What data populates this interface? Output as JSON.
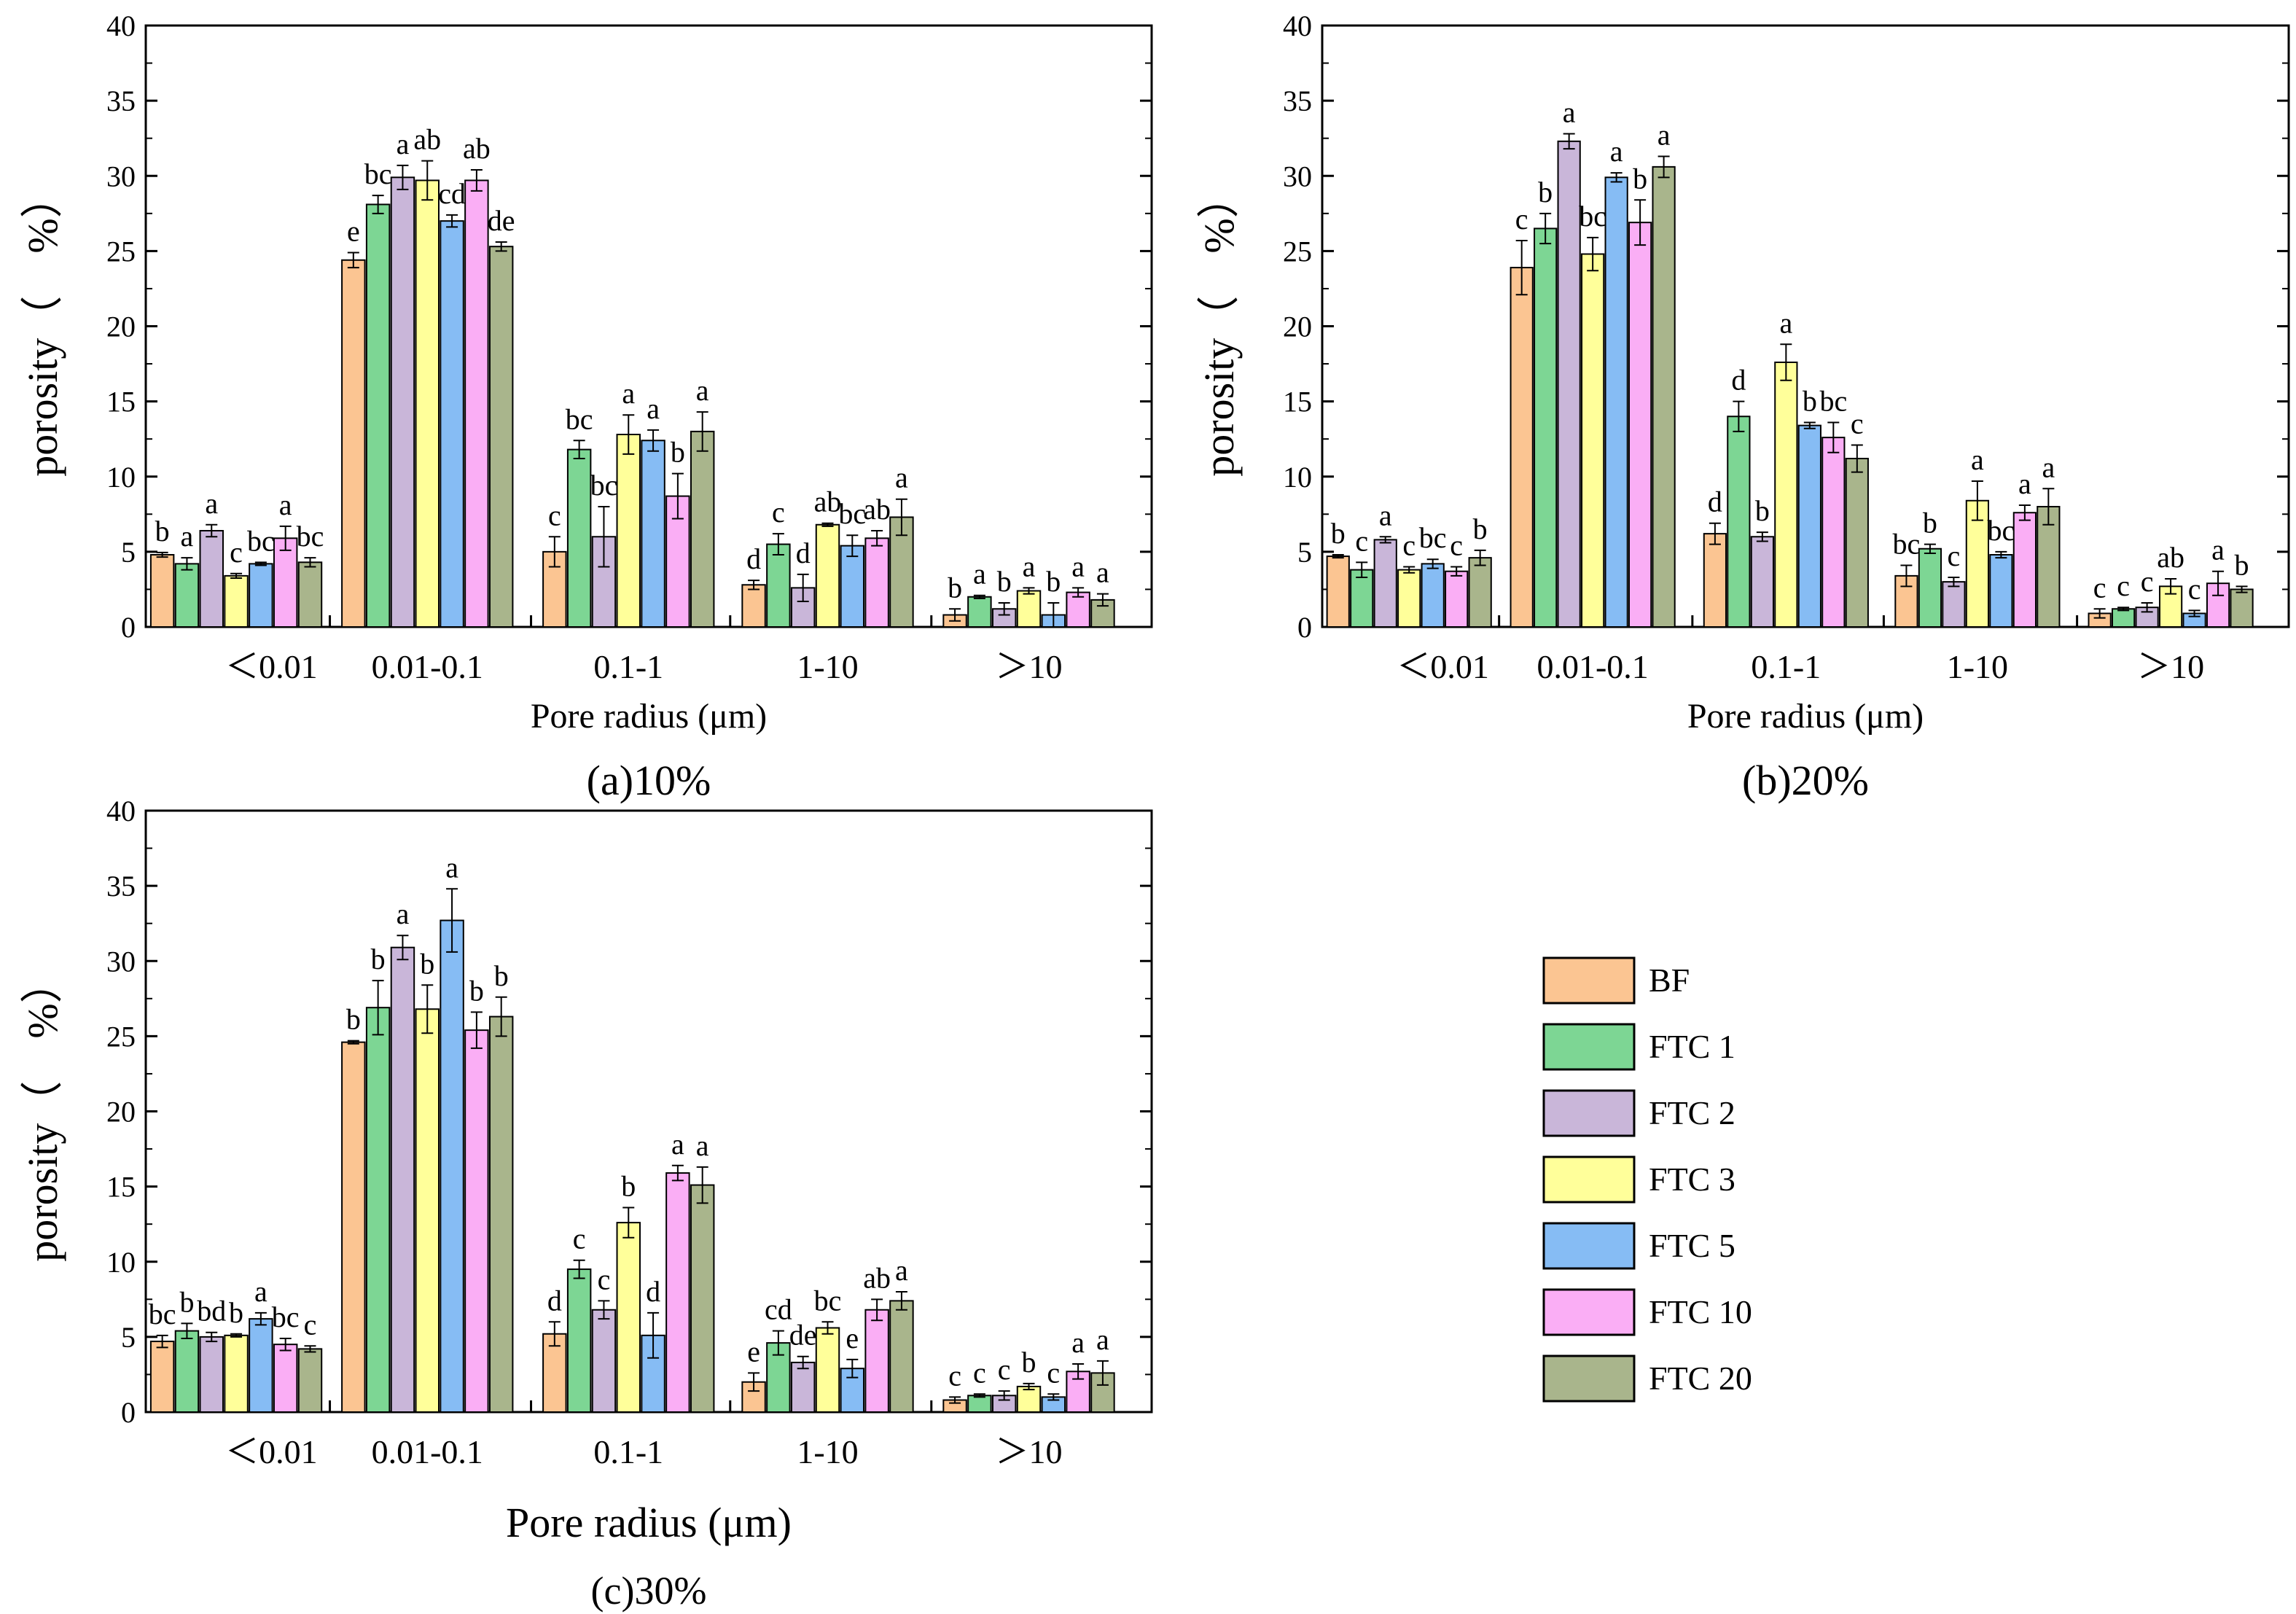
{
  "legend": [
    {
      "name": "BF",
      "color": "#FBC592"
    },
    {
      "name": "FTC 1",
      "color": "#7DD694"
    },
    {
      "name": "FTC 2",
      "color": "#C9B6D9"
    },
    {
      "name": "FTC 3",
      "color": "#FFFF9A"
    },
    {
      "name": "FTC 5",
      "color": "#86BCF4"
    },
    {
      "name": "FTC 10",
      "color": "#FAAEF5"
    },
    {
      "name": "FTC 20",
      "color": "#A9B58C"
    }
  ],
  "chart_data": [
    {
      "type": "bar",
      "title": "(a)10%",
      "xlabel": "Pore radius (μm)",
      "ylabel": "porosity（　%）",
      "ylim": [
        0,
        40
      ],
      "yticks": [
        "0",
        "5",
        "10",
        "15",
        "20",
        "25",
        "30",
        "35",
        "40"
      ],
      "categories": [
        "<0.01",
        "0.01-0.1",
        "0.1-1",
        "1-10",
        ">10"
      ],
      "category_labels": [
        "＜0.01",
        "0.01-0.1",
        "0.1-1",
        "1-10",
        "＞10"
      ],
      "series": [
        {
          "name": "BF",
          "values": [
            4.8,
            24.4,
            5.0,
            2.8,
            0.8
          ],
          "errors": [
            0.15,
            0.5,
            1.0,
            0.3,
            0.4
          ],
          "letters": [
            "b",
            "e",
            "c",
            "d",
            "b"
          ]
        },
        {
          "name": "FTC 1",
          "values": [
            4.2,
            28.1,
            11.8,
            5.5,
            2.0
          ],
          "errors": [
            0.4,
            0.6,
            0.6,
            0.7,
            0.1
          ],
          "letters": [
            "a",
            "bc",
            "bc",
            "c",
            "a"
          ]
        },
        {
          "name": "FTC 2",
          "values": [
            6.4,
            29.9,
            6.0,
            2.6,
            1.2
          ],
          "errors": [
            0.4,
            0.8,
            2.0,
            0.9,
            0.4
          ],
          "letters": [
            "a",
            "a",
            "bc",
            "d",
            "b"
          ]
        },
        {
          "name": "FTC 3",
          "values": [
            3.4,
            29.7,
            12.8,
            6.8,
            2.4
          ],
          "errors": [
            0.15,
            1.3,
            1.3,
            0.1,
            0.2
          ],
          "letters": [
            "c",
            "ab",
            "a",
            "ab",
            "a"
          ]
        },
        {
          "name": "FTC 5",
          "values": [
            4.2,
            27.0,
            12.4,
            5.4,
            0.8
          ],
          "errors": [
            0.1,
            0.4,
            0.7,
            0.7,
            0.8
          ],
          "letters": [
            "bc",
            "cd",
            "a",
            "bc",
            "b"
          ]
        },
        {
          "name": "FTC 10",
          "values": [
            5.9,
            29.7,
            8.7,
            5.9,
            2.3
          ],
          "errors": [
            0.8,
            0.7,
            1.5,
            0.5,
            0.3
          ],
          "letters": [
            "a",
            "ab",
            "b",
            "ab",
            "a"
          ]
        },
        {
          "name": "FTC 20",
          "values": [
            4.3,
            25.3,
            13.0,
            7.3,
            1.8
          ],
          "errors": [
            0.3,
            0.3,
            1.3,
            1.2,
            0.4
          ],
          "letters": [
            "bc",
            "de",
            "a",
            "a",
            "a"
          ]
        }
      ]
    },
    {
      "type": "bar",
      "title": "(b)20%",
      "xlabel": "Pore radius (μm)",
      "ylabel": "porosity（　%）",
      "ylim": [
        0,
        40
      ],
      "yticks": [
        "0",
        "5",
        "10",
        "15",
        "20",
        "25",
        "30",
        "35",
        "40"
      ],
      "categories": [
        "<0.01",
        "0.01-0.1",
        "0.1-1",
        "1-10",
        ">10"
      ],
      "category_labels": [
        "＜0.01",
        "0.01-0.1",
        "0.1-1",
        "1-10",
        "＞10"
      ],
      "series": [
        {
          "name": "BF",
          "values": [
            4.7,
            23.9,
            6.2,
            3.4,
            0.9
          ],
          "errors": [
            0.1,
            1.8,
            0.7,
            0.7,
            0.3
          ],
          "letters": [
            "b",
            "c",
            "d",
            "bc",
            "c"
          ]
        },
        {
          "name": "FTC 1",
          "values": [
            3.8,
            26.5,
            14.0,
            5.2,
            1.2
          ],
          "errors": [
            0.5,
            1.0,
            1.0,
            0.3,
            0.1
          ],
          "letters": [
            "c",
            "b",
            "d",
            "b",
            "c"
          ]
        },
        {
          "name": "FTC 2",
          "values": [
            5.8,
            32.3,
            6.0,
            3.0,
            1.3
          ],
          "errors": [
            0.2,
            0.5,
            0.3,
            0.3,
            0.3
          ],
          "letters": [
            "a",
            "a",
            "b",
            "c",
            "c"
          ]
        },
        {
          "name": "FTC 3",
          "values": [
            3.8,
            24.8,
            17.6,
            8.4,
            2.7
          ],
          "errors": [
            0.2,
            1.1,
            1.2,
            1.3,
            0.5
          ],
          "letters": [
            "c",
            "bc",
            "a",
            "a",
            "ab"
          ]
        },
        {
          "name": "FTC 5",
          "values": [
            4.2,
            29.9,
            13.4,
            4.8,
            0.9
          ],
          "errors": [
            0.3,
            0.3,
            0.2,
            0.2,
            0.2
          ],
          "letters": [
            "bc",
            "a",
            "b",
            "bc",
            "c"
          ]
        },
        {
          "name": "FTC 10",
          "values": [
            3.7,
            26.9,
            12.6,
            7.6,
            2.9
          ],
          "errors": [
            0.3,
            1.5,
            1.0,
            0.5,
            0.8
          ],
          "letters": [
            "c",
            "b",
            "bc",
            "a",
            "a"
          ]
        },
        {
          "name": "FTC 20",
          "values": [
            4.6,
            30.6,
            11.2,
            8.0,
            2.5
          ],
          "errors": [
            0.5,
            0.7,
            0.9,
            1.2,
            0.2
          ],
          "letters": [
            "b",
            "a",
            "c",
            "a",
            "b"
          ]
        }
      ]
    },
    {
      "type": "bar",
      "title": "(c)30%",
      "xlabel": "Pore radius (μm)",
      "ylabel": "porosity（　%）",
      "ylim": [
        0,
        40
      ],
      "yticks": [
        "0",
        "5",
        "10",
        "15",
        "20",
        "25",
        "30",
        "35",
        "40"
      ],
      "categories": [
        "<0.01",
        "0.01-0.1",
        "0.1-1",
        "1-10",
        ">10"
      ],
      "category_labels": [
        "＜0.01",
        "0.01-0.1",
        "0.1-1",
        "1-10",
        "＞10"
      ],
      "series": [
        {
          "name": "BF",
          "values": [
            4.7,
            24.6,
            5.2,
            2.0,
            0.8
          ],
          "errors": [
            0.4,
            0.1,
            0.8,
            0.6,
            0.2
          ],
          "letters": [
            "bc",
            "b",
            "d",
            "e",
            "c"
          ]
        },
        {
          "name": "FTC 1",
          "values": [
            5.4,
            26.9,
            9.5,
            4.6,
            1.1
          ],
          "errors": [
            0.5,
            1.8,
            0.6,
            0.8,
            0.1
          ],
          "letters": [
            "b",
            "b",
            "c",
            "cd",
            "c"
          ]
        },
        {
          "name": "FTC 2",
          "values": [
            5.0,
            30.9,
            6.8,
            3.3,
            1.1
          ],
          "errors": [
            0.3,
            0.8,
            0.6,
            0.4,
            0.3
          ],
          "letters": [
            "bd",
            "a",
            "c",
            "de",
            "c"
          ]
        },
        {
          "name": "FTC 3",
          "values": [
            5.1,
            26.8,
            12.6,
            5.6,
            1.7
          ],
          "errors": [
            0.1,
            1.6,
            1.0,
            0.4,
            0.2
          ],
          "letters": [
            "b",
            "b",
            "b",
            "bc",
            "b"
          ]
        },
        {
          "name": "FTC 5",
          "values": [
            6.2,
            32.7,
            5.1,
            2.9,
            1.0
          ],
          "errors": [
            0.4,
            2.1,
            1.5,
            0.6,
            0.2
          ],
          "letters": [
            "a",
            "a",
            "d",
            "e",
            "c"
          ]
        },
        {
          "name": "FTC 10",
          "values": [
            4.5,
            25.4,
            15.9,
            6.8,
            2.7
          ],
          "errors": [
            0.4,
            1.2,
            0.5,
            0.7,
            0.5
          ],
          "letters": [
            "bc",
            "b",
            "a",
            "ab",
            "a"
          ]
        },
        {
          "name": "FTC 20",
          "values": [
            4.2,
            26.3,
            15.1,
            7.4,
            2.6
          ],
          "errors": [
            0.2,
            1.3,
            1.2,
            0.6,
            0.8
          ],
          "letters": [
            "c",
            "b",
            "a",
            "a",
            "a"
          ]
        }
      ]
    }
  ]
}
